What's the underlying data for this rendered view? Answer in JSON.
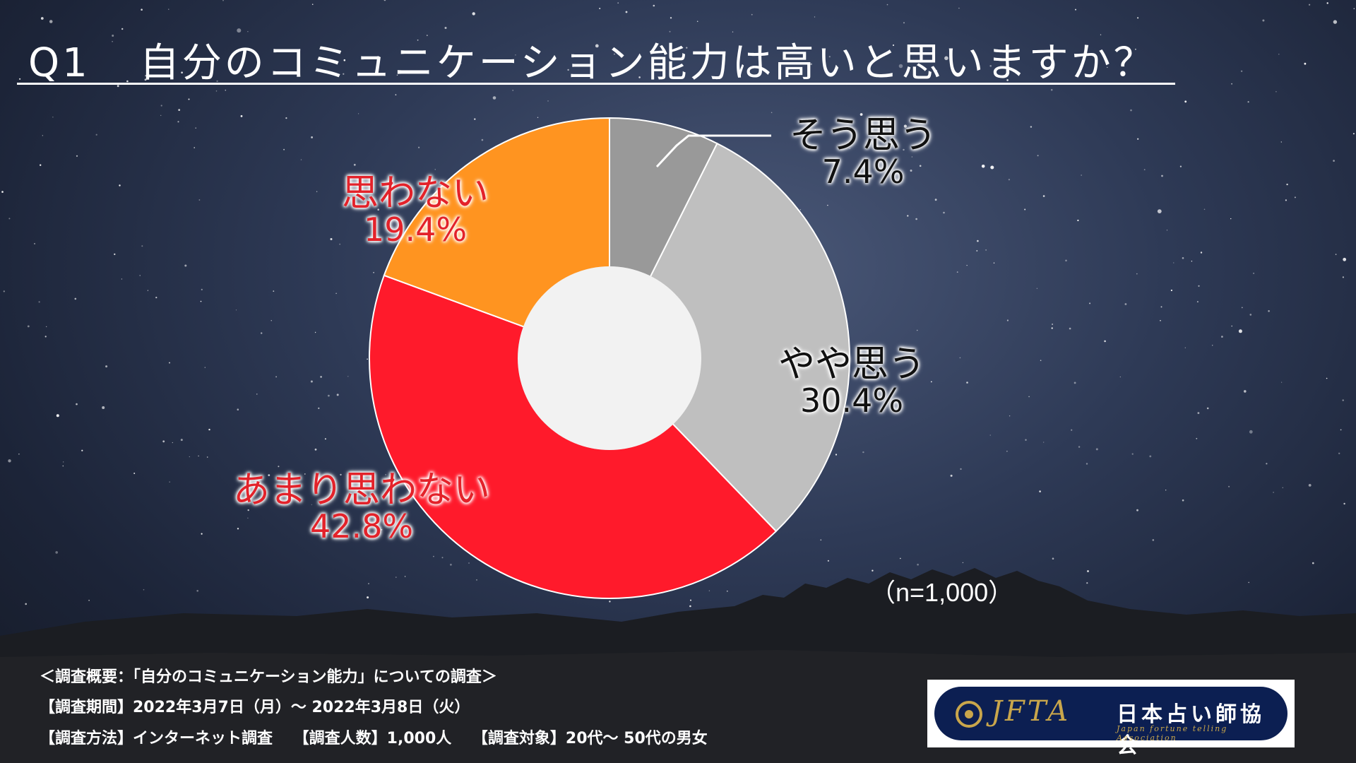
{
  "title": {
    "qnum": "Q1",
    "question": "自分のコミュニケーション能力は高いと思いますか？"
  },
  "chart_data": {
    "type": "pie",
    "variant": "donut",
    "categories": [
      "そう思う",
      "やや思う",
      "あまり思わない",
      "思わない"
    ],
    "values": [
      7.4,
      30.4,
      42.8,
      19.4
    ],
    "value_labels": [
      "7.4%",
      "30.4%",
      "42.8%",
      "19.4%"
    ],
    "colors": [
      "#999999",
      "#bfbfbf",
      "#ff1a2b",
      "#ff9420"
    ],
    "hole_color": "#f2f2f2",
    "start_angle_deg": 0,
    "direction": "clockwise",
    "sample_note": "（n=1,000）"
  },
  "labels": {
    "sou_omou": {
      "name": "そう思う",
      "pct": "7.4%"
    },
    "yaya_omou": {
      "name": "やや思う",
      "pct": "30.4%"
    },
    "amari_omowanai": {
      "name": "あまり思わない",
      "pct": "42.8%"
    },
    "omowanai": {
      "name": "思わない",
      "pct": "19.4%"
    }
  },
  "survey": {
    "overview": "＜調査概要：「自分のコミュニケーション能力」についての調査＞",
    "period": "【調査期間】2022年3月7日（月）～ 2022年3月8日（火）",
    "method": "【調査方法】インターネット調査　 【調査人数】1,000人　 【調査対象】20代～ 50代の男女"
  },
  "logo": {
    "abbr": "JFTA",
    "name_jp": "日本占い師協会",
    "name_en": "Japan fortune telling Association"
  }
}
